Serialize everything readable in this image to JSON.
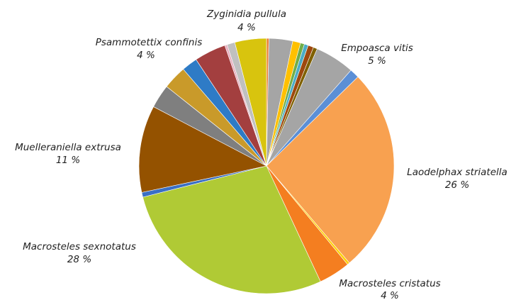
{
  "chart_data": {
    "type": "pie",
    "categories": [
      null,
      null,
      null,
      null,
      null,
      null,
      null,
      "Empoasca vitis",
      null,
      "Laodelphax striatella",
      null,
      "Macrosteles cristatus",
      "Macrosteles sexnotatus",
      null,
      "Muelleraniella extrusa",
      null,
      null,
      null,
      "Psammotettix confinis",
      null,
      null,
      "Zyginidia pullula"
    ],
    "values": [
      0.3,
      3,
      1,
      0.5,
      0.5,
      0.7,
      0.5,
      5,
      1.2,
      26,
      0.3,
      4,
      28,
      0.6,
      11,
      3,
      3,
      2,
      4,
      0.3,
      1,
      4
    ],
    "value_labels": [
      null,
      null,
      null,
      null,
      null,
      null,
      null,
      "5 %",
      null,
      "26 %",
      null,
      "4 %",
      "28 %",
      null,
      "11 %",
      null,
      null,
      null,
      "4 %",
      null,
      null,
      "4 %"
    ],
    "colors": [
      "#ed7d31",
      "#a5a5a5",
      "#ffc000",
      "#70ad47",
      "#4bacc6",
      "#9e480e",
      "#7f6000",
      "#a5a5a5",
      "#5b8fd6",
      "#f8a150",
      "#ffd000",
      "#f47e20",
      "#b0ca35",
      "#3a6fc4",
      "#945200",
      "#7f7f7f",
      "#c99a2a",
      "#2e7bc6",
      "#a33f3f",
      "#e8b0c0",
      "#c0c0c0",
      "#d8c40e"
    ]
  }
}
